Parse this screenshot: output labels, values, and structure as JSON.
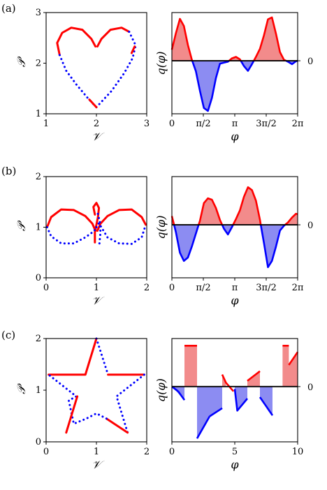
{
  "panel_labels": [
    "(a)",
    "(b)",
    "(c)"
  ],
  "colors": {
    "positive": "#ff0000",
    "negative": "#0000ff",
    "positive_fill": "#f28b8b",
    "negative_fill": "#8c8cf2",
    "axis": "#000000"
  },
  "chart_data": [
    {
      "panel": "(a)",
      "type": "line",
      "shape": "heart",
      "xlabel": "𝒱",
      "ylabel": "𝒫",
      "xlim": [
        1,
        3
      ],
      "ylim": [
        1,
        3
      ],
      "xticks": [
        "1",
        "2",
        "3"
      ],
      "yticks": [
        "1",
        "2",
        "3"
      ],
      "series": [
        {
          "style": "solid red",
          "points": [
            [
              1.27,
              2.16
            ],
            [
              1.22,
              2.4
            ],
            [
              1.32,
              2.6
            ],
            [
              1.5,
              2.7
            ],
            [
              1.72,
              2.66
            ],
            [
              1.9,
              2.48
            ],
            [
              1.98,
              2.33
            ]
          ]
        },
        {
          "style": "solid red",
          "points": [
            [
              2.02,
              2.33
            ],
            [
              2.1,
              2.48
            ],
            [
              2.28,
              2.66
            ],
            [
              2.5,
              2.7
            ],
            [
              2.65,
              2.62
            ]
          ]
        },
        {
          "style": "dotted blue",
          "points": [
            [
              1.27,
              2.16
            ],
            [
              1.4,
              1.85
            ],
            [
              1.6,
              1.58
            ],
            [
              1.82,
              1.32
            ],
            [
              1.93,
              1.2
            ],
            [
              2.0,
              1.13
            ]
          ]
        },
        {
          "style": "dotted blue",
          "points": [
            [
              2.0,
              1.13
            ],
            [
              2.3,
              1.45
            ],
            [
              2.55,
              1.8
            ],
            [
              2.72,
              2.1
            ],
            [
              2.78,
              2.35
            ],
            [
              2.65,
              2.62
            ]
          ]
        },
        {
          "style": "solid red",
          "points": [
            [
              1.86,
              1.28
            ],
            [
              2.0,
              1.13
            ]
          ]
        },
        {
          "style": "solid red",
          "points": [
            [
              2.7,
              2.2
            ],
            [
              2.76,
              2.33
            ]
          ]
        }
      ]
    },
    {
      "panel": "(a)",
      "type": "area",
      "xlabel": "φ",
      "ylabel": "q(φ)",
      "right_ticks": [
        "0"
      ],
      "xlim": [
        0,
        6.2832
      ],
      "ylim": [
        -1.1,
        1.0
      ],
      "xticks": [
        "0",
        "π/2",
        "π",
        "3π/2",
        "2π"
      ],
      "x": [
        0,
        0.2,
        0.4,
        0.6,
        0.8,
        1.0,
        1.2,
        1.4,
        1.6,
        1.8,
        2.0,
        2.2,
        2.4,
        2.6,
        2.8,
        3.0,
        3.2,
        3.4,
        3.6,
        3.8,
        4.0,
        4.2,
        4.4,
        4.6,
        4.8,
        5.0,
        5.2,
        5.4,
        5.6,
        5.8,
        6.0,
        6.2,
        6.2832
      ],
      "y": [
        0.23,
        0.57,
        0.87,
        0.72,
        0.33,
        0.02,
        -0.22,
        -0.62,
        -0.98,
        -1.04,
        -0.77,
        -0.36,
        -0.06,
        -0.04,
        -0.02,
        0.05,
        0.08,
        0.03,
        -0.11,
        -0.21,
        -0.07,
        0.08,
        0.25,
        0.53,
        0.86,
        0.9,
        0.56,
        0.18,
        0.02,
        -0.02,
        -0.07,
        -0.01,
        0.0
      ]
    },
    {
      "panel": "(b)",
      "type": "line",
      "shape": "infinity",
      "xlabel": "𝒱",
      "ylabel": "𝒫",
      "xlim": [
        0,
        2
      ],
      "ylim": [
        0,
        2
      ],
      "xticks": [
        "0",
        "1",
        "2"
      ],
      "yticks": [
        "0",
        "1",
        "2"
      ],
      "series": [
        {
          "style": "solid red",
          "points": [
            [
              0.02,
              1.0
            ],
            [
              0.1,
              1.2
            ],
            [
              0.3,
              1.35
            ],
            [
              0.55,
              1.34
            ],
            [
              0.78,
              1.22
            ],
            [
              0.92,
              1.07
            ],
            [
              0.98,
              0.93
            ]
          ]
        },
        {
          "style": "solid red",
          "points": [
            [
              1.02,
              0.93
            ],
            [
              1.08,
              1.07
            ],
            [
              1.22,
              1.22
            ],
            [
              1.45,
              1.34
            ],
            [
              1.7,
              1.35
            ],
            [
              1.9,
              1.2
            ],
            [
              1.98,
              1.05
            ]
          ]
        },
        {
          "style": "solid red",
          "points": [
            [
              0.97,
              1.25
            ],
            [
              0.94,
              1.4
            ],
            [
              1.0,
              1.48
            ],
            [
              1.05,
              1.38
            ],
            [
              1.03,
              1.2
            ],
            [
              0.97,
              0.9
            ],
            [
              0.97,
              0.7
            ]
          ]
        },
        {
          "style": "dotted blue",
          "points": [
            [
              0.02,
              1.0
            ],
            [
              0.1,
              0.82
            ],
            [
              0.3,
              0.68
            ],
            [
              0.55,
              0.68
            ],
            [
              0.78,
              0.8
            ],
            [
              0.95,
              0.92
            ],
            [
              1.0,
              1.0
            ]
          ]
        },
        {
          "style": "dotted blue",
          "points": [
            [
              1.0,
              1.0
            ],
            [
              1.05,
              1.08
            ],
            [
              1.22,
              0.8
            ],
            [
              1.45,
              0.68
            ],
            [
              1.7,
              0.67
            ],
            [
              1.9,
              0.8
            ],
            [
              1.98,
              1.05
            ]
          ]
        },
        {
          "style": "dotted blue",
          "points": [
            [
              1.06,
              0.68
            ],
            [
              1.08,
              0.9
            ],
            [
              1.07,
              1.1
            ],
            [
              1.02,
              1.3
            ]
          ]
        }
      ]
    },
    {
      "panel": "(b)",
      "type": "area",
      "xlabel": "φ",
      "ylabel": "q(φ)",
      "right_ticks": [
        "0"
      ],
      "xlim": [
        0,
        6.2832
      ],
      "ylim": [
        -1.1,
        1.0
      ],
      "xticks": [
        "0",
        "π/2",
        "π",
        "3π/2",
        "2π"
      ],
      "x": [
        0,
        0.2,
        0.4,
        0.6,
        0.8,
        1.0,
        1.2,
        1.4,
        1.6,
        1.8,
        2.0,
        2.2,
        2.4,
        2.6,
        2.8,
        3.0,
        3.2,
        3.4,
        3.6,
        3.8,
        4.0,
        4.2,
        4.4,
        4.6,
        4.8,
        5.0,
        5.2,
        5.4,
        5.6,
        5.8,
        6.0,
        6.2,
        6.2832
      ],
      "y": [
        0.18,
        -0.15,
        -0.58,
        -0.75,
        -0.68,
        -0.45,
        -0.18,
        0.08,
        0.45,
        0.55,
        0.52,
        0.35,
        0.1,
        -0.08,
        -0.2,
        -0.05,
        0.12,
        0.3,
        0.58,
        0.78,
        0.72,
        0.5,
        0.1,
        -0.38,
        -0.88,
        -0.75,
        -0.45,
        -0.12,
        -0.02,
        0.05,
        0.15,
        0.23,
        0.22
      ]
    },
    {
      "panel": "(c)",
      "type": "line",
      "shape": "star",
      "xlabel": "𝒱",
      "ylabel": "𝒫",
      "xlim": [
        0,
        2
      ],
      "ylim": [
        0,
        2
      ],
      "xticks": [
        "0",
        "1",
        "2"
      ],
      "yticks": [
        "0",
        "1",
        "2"
      ],
      "series": [
        {
          "style": "solid red",
          "points": [
            [
              0.05,
              1.3
            ],
            [
              0.78,
              1.3
            ],
            [
              1.0,
              2.0
            ]
          ]
        },
        {
          "style": "dotted blue",
          "points": [
            [
              1.0,
              2.0
            ],
            [
              1.23,
              1.3
            ]
          ]
        },
        {
          "style": "solid red",
          "points": [
            [
              1.23,
              1.3
            ],
            [
              1.95,
              1.3
            ]
          ]
        },
        {
          "style": "dotted blue",
          "points": [
            [
              1.95,
              1.3
            ],
            [
              1.4,
              0.88
            ],
            [
              1.62,
              0.18
            ]
          ]
        },
        {
          "style": "solid red",
          "points": [
            [
              1.62,
              0.18
            ],
            [
              1.2,
              0.45
            ]
          ]
        },
        {
          "style": "dotted blue",
          "points": [
            [
              1.2,
              0.45
            ],
            [
              1.0,
              0.55
            ],
            [
              0.8,
              0.45
            ],
            [
              0.55,
              0.35
            ],
            [
              0.45,
              0.8
            ],
            [
              0.6,
              0.88
            ],
            [
              0.05,
              1.3
            ]
          ]
        },
        {
          "style": "solid red",
          "points": [
            [
              0.4,
              0.18
            ],
            [
              0.62,
              0.88
            ]
          ]
        }
      ]
    },
    {
      "panel": "(c)",
      "type": "area",
      "step": true,
      "xlabel": "φ",
      "ylabel": "q(φ)",
      "right_ticks": [
        "0"
      ],
      "xlim": [
        0,
        10
      ],
      "ylim": [
        -1.15,
        1.0
      ],
      "xticks": [
        "0",
        "5",
        "10"
      ],
      "segments": [
        [
          [
            0,
            0
          ],
          [
            0.5,
            -0.1
          ]
        ],
        [
          [
            0.5,
            -0.1
          ],
          [
            1,
            -0.28
          ]
        ],
        [
          [
            1,
            0.85
          ],
          [
            2,
            0.85
          ]
        ],
        [
          [
            2,
            -1.08
          ],
          [
            3,
            -0.62
          ]
        ],
        [
          [
            3,
            -0.62
          ],
          [
            4,
            -0.45
          ]
        ],
        [
          [
            4,
            0.25
          ],
          [
            4.3,
            0.08
          ],
          [
            4.9,
            -0.1
          ]
        ],
        [
          [
            5,
            -0.05
          ],
          [
            5.2,
            -0.5
          ],
          [
            6,
            -0.25
          ]
        ],
        [
          [
            6,
            0.12
          ],
          [
            7,
            0.32
          ]
        ],
        [
          [
            7,
            -0.22
          ],
          [
            8,
            -0.6
          ]
        ],
        [
          [
            8.8,
            0.85
          ],
          [
            9.3,
            0.85
          ]
        ],
        [
          [
            9.3,
            0.45
          ],
          [
            10,
            0.72
          ]
        ]
      ],
      "fill_segments": [
        [
          [
            1,
            0.85
          ],
          [
            2,
            0.85
          ]
        ],
        [
          [
            2,
            -1.08
          ],
          [
            3,
            -0.62
          ],
          [
            4,
            -0.45
          ]
        ],
        [
          [
            4,
            0.25
          ],
          [
            4.3,
            0.08
          ]
        ],
        [
          [
            5,
            -0.05
          ],
          [
            5.2,
            -0.5
          ],
          [
            6,
            -0.25
          ]
        ],
        [
          [
            6,
            0.12
          ],
          [
            7,
            0.32
          ]
        ],
        [
          [
            7,
            -0.22
          ],
          [
            8,
            -0.6
          ]
        ],
        [
          [
            8.8,
            0.85
          ],
          [
            9.3,
            0.85
          ],
          [
            9.3,
            0.45
          ],
          [
            10,
            0.72
          ]
        ],
        [
          [
            0,
            0
          ],
          [
            1,
            -0.28
          ]
        ]
      ]
    }
  ]
}
